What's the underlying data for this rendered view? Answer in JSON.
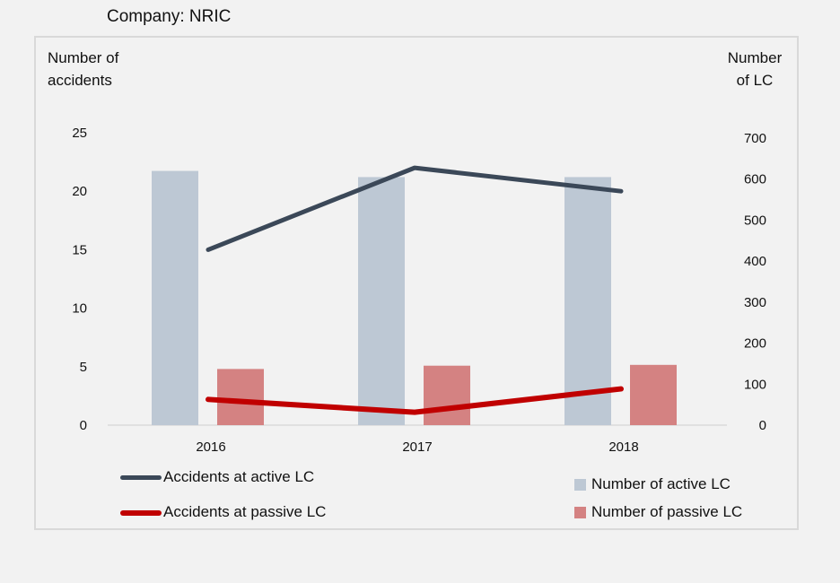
{
  "header": {
    "company_title": "Company: NRIC"
  },
  "chart_data": {
    "type": "bar+line",
    "categories": [
      "2016",
      "2017",
      "2018"
    ],
    "left_axis": {
      "label": "Number of accidents",
      "ylim": [
        0,
        25
      ],
      "ticks": [
        0,
        5,
        10,
        15,
        20,
        25
      ]
    },
    "right_axis": {
      "label": "Number of LC",
      "ylim": [
        0,
        700
      ],
      "ticks": [
        0,
        100,
        200,
        300,
        400,
        500,
        600,
        700
      ]
    },
    "series": [
      {
        "name": "Number of active LC",
        "kind": "bar",
        "axis": "right",
        "color": "#bdc8d4",
        "values": [
          620,
          605,
          605
        ]
      },
      {
        "name": "Number of passive LC",
        "kind": "bar",
        "axis": "right",
        "color": "#d48282",
        "values": [
          137,
          145,
          147
        ]
      },
      {
        "name": "Accidents at active LC",
        "kind": "line",
        "axis": "left",
        "color": "#3b4858",
        "values": [
          15,
          22,
          20
        ]
      },
      {
        "name": "Accidents at passive LC",
        "kind": "line",
        "axis": "left",
        "color": "#c00000",
        "values": [
          2.2,
          1.1,
          3.1
        ]
      }
    ],
    "legend_position": "bottom",
    "grid": false
  },
  "labels": {
    "left_axis_line1": "Number of",
    "left_axis_line2": "accidents",
    "right_axis_line1": "Number",
    "right_axis_line2": "of LC"
  }
}
